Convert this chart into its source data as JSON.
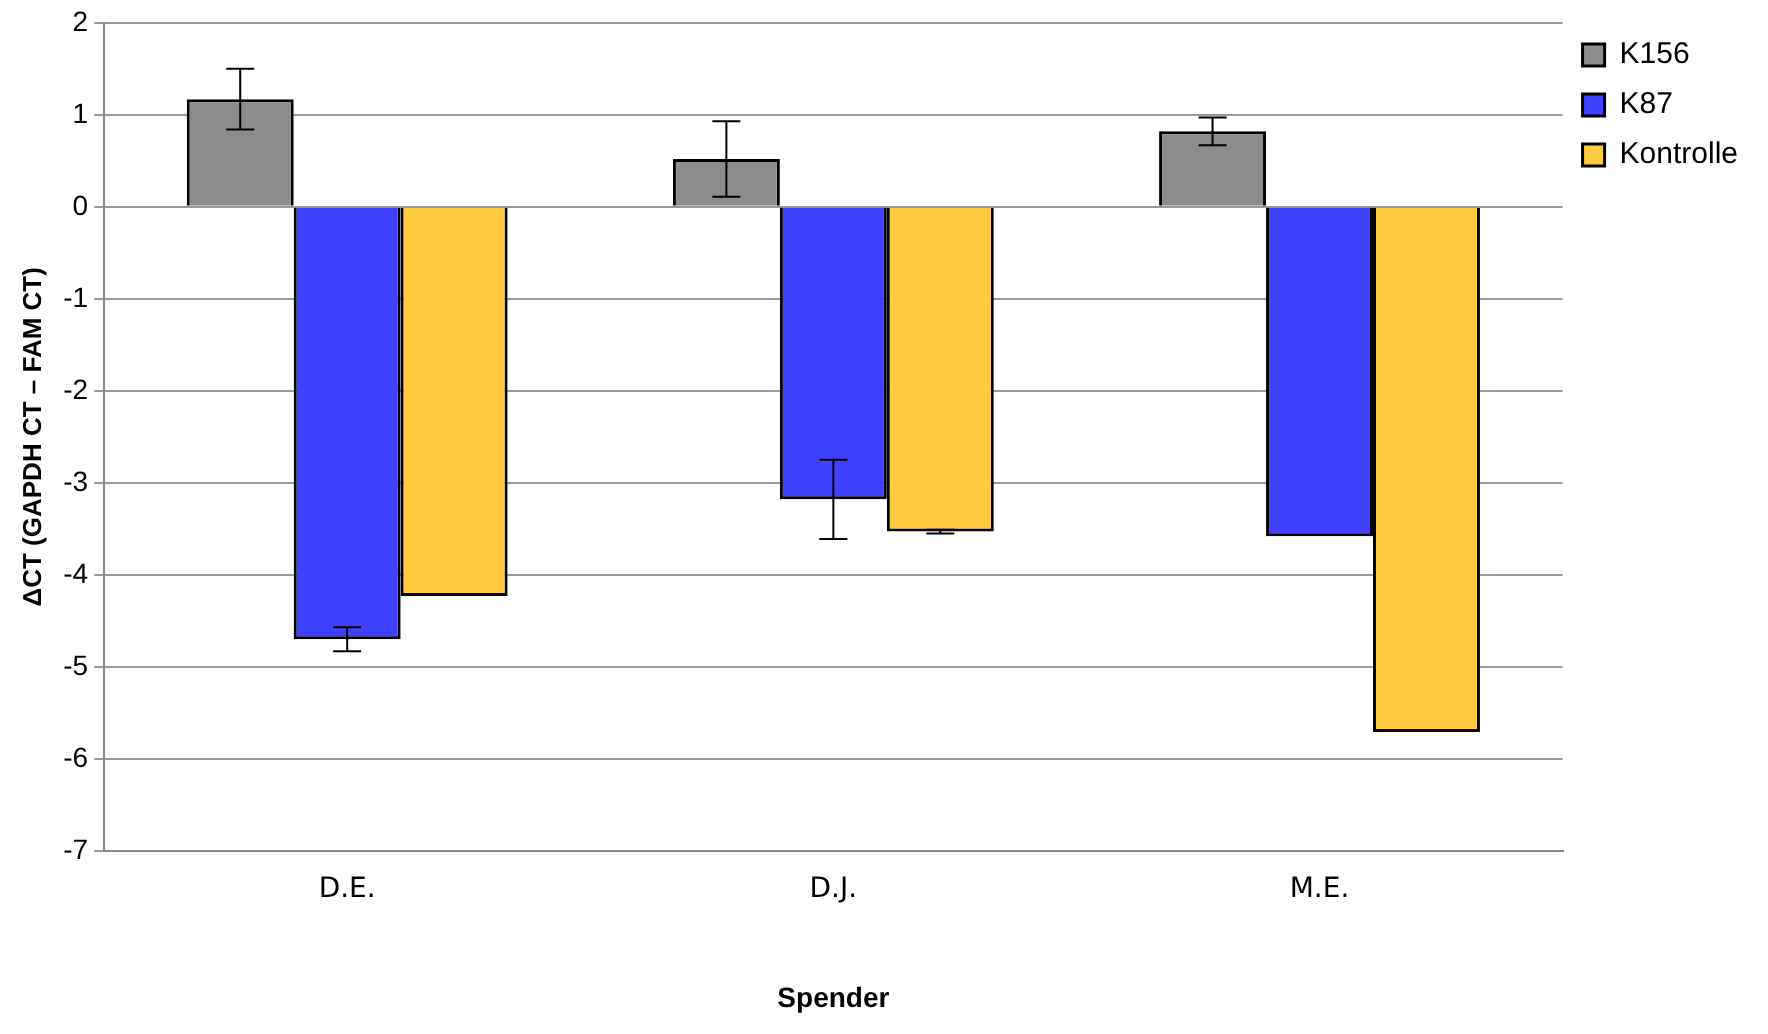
{
  "chart_data": {
    "type": "bar",
    "xlabel": "Spender",
    "ylabel": "ΔCT (GAPDH CT – FAM CT)",
    "categories": [
      "D.E.",
      "D.J.",
      "M.E."
    ],
    "series": [
      {
        "name": "K156",
        "color": "#8c8c8c",
        "values": [
          1.17,
          0.52,
          0.82
        ],
        "errors": [
          0.33,
          0.41,
          0.15
        ]
      },
      {
        "name": "K87",
        "color": "#4040ff",
        "values": [
          -4.7,
          -3.18,
          -3.58
        ],
        "errors": [
          0.13,
          0.43,
          null
        ]
      },
      {
        "name": "Kontrolle",
        "color": "#ffcc40",
        "values": [
          -4.23,
          -3.53,
          -5.71
        ],
        "errors": [
          null,
          0.02,
          null
        ]
      }
    ],
    "ylim": [
      -7,
      2
    ],
    "yticks": [
      -7,
      -6,
      -5,
      -4,
      -3,
      -2,
      -1,
      0,
      1,
      2
    ],
    "grid": "y",
    "legend": "top right"
  }
}
